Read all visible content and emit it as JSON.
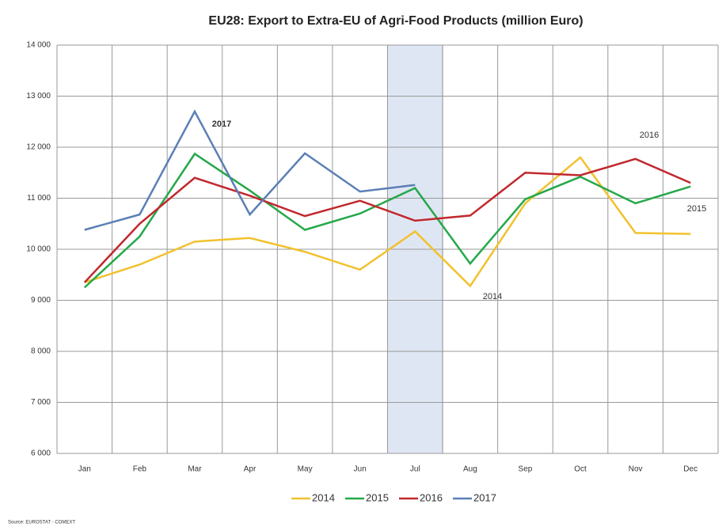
{
  "chart_data": {
    "type": "line",
    "title": "EU28: Export to Extra-EU of Agri-Food Products (million Euro)",
    "categories": [
      "Jan",
      "Feb",
      "Mar",
      "Apr",
      "May",
      "Jun",
      "Jul",
      "Aug",
      "Sep",
      "Oct",
      "Nov",
      "Dec"
    ],
    "series": [
      {
        "name": "2014",
        "color": "#f2c12e",
        "values": [
          9350,
          9700,
          10150,
          10220,
          9950,
          9600,
          10350,
          9280,
          10900,
          11800,
          10320,
          10300
        ]
      },
      {
        "name": "2015",
        "color": "#25a84a",
        "values": [
          9250,
          10250,
          11870,
          11150,
          10380,
          10700,
          11200,
          9720,
          10980,
          11420,
          10900,
          11230
        ]
      },
      {
        "name": "2016",
        "color": "#c0282d",
        "values": [
          9350,
          10500,
          11400,
          11050,
          10650,
          10950,
          10560,
          10660,
          11500,
          11450,
          11770,
          11300
        ]
      },
      {
        "name": "2017",
        "color": "#5b7fb5",
        "values": [
          10380,
          10680,
          12700,
          10680,
          11880,
          11130,
          11260,
          null,
          null,
          null,
          null,
          null
        ]
      }
    ],
    "ylim": [
      6000,
      14000
    ],
    "yticks": [
      {
        "value": 6000,
        "label": "6 000"
      },
      {
        "value": 7000,
        "label": "7 000"
      },
      {
        "value": 8000,
        "label": "8 000"
      },
      {
        "value": 9000,
        "label": "9 000"
      },
      {
        "value": 10000,
        "label": "10 000"
      },
      {
        "value": 11000,
        "label": "11 000"
      },
      {
        "value": 12000,
        "label": "12 000"
      },
      {
        "value": 13000,
        "label": "13 000"
      },
      {
        "value": 14000,
        "label": "14 000"
      }
    ],
    "grid": true,
    "highlight_category": "Jul",
    "legend": "bottom",
    "annotations": [
      "2017",
      "2016",
      "2015",
      "2014"
    ],
    "source": "Source: EUROSTAT - COMEXT"
  }
}
